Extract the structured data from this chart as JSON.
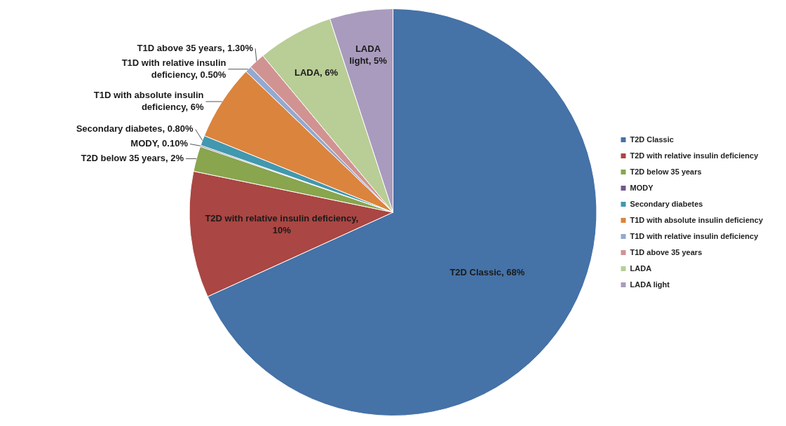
{
  "chart_data": {
    "type": "pie",
    "categories": [
      "T2D Classic",
      "T2D with relative insulin deficiency",
      "T2D below 35 years",
      "MODY",
      "Secondary diabetes",
      "T1D with absolute insulin deficiency",
      "T1D with relative insulin deficiency",
      "T1D above 35 years",
      "LADA",
      "LADA light"
    ],
    "values": [
      68,
      10,
      2,
      0.1,
      0.8,
      6,
      0.5,
      1.3,
      6,
      5
    ],
    "value_labels": [
      "T2D Classic, 68%",
      "T2D with relative insulin deficiency, 10%",
      "T2D below 35 years, 2%",
      "MODY, 0.10%",
      "Secondary diabetes, 0.80%",
      "T1D with absolute insulin deficiency, 6%",
      "T1D with relative insulin deficiency, 0.50%",
      "T1D above 35 years, 1.30%",
      "LADA, 6%",
      "LADA light, 5%"
    ],
    "colors": [
      "#4572a7",
      "#aa4643",
      "#89a54e",
      "#71588f",
      "#4198af",
      "#db843d",
      "#93a9cf",
      "#d19392",
      "#b9cd96",
      "#a99bbd"
    ],
    "legend": "right"
  }
}
